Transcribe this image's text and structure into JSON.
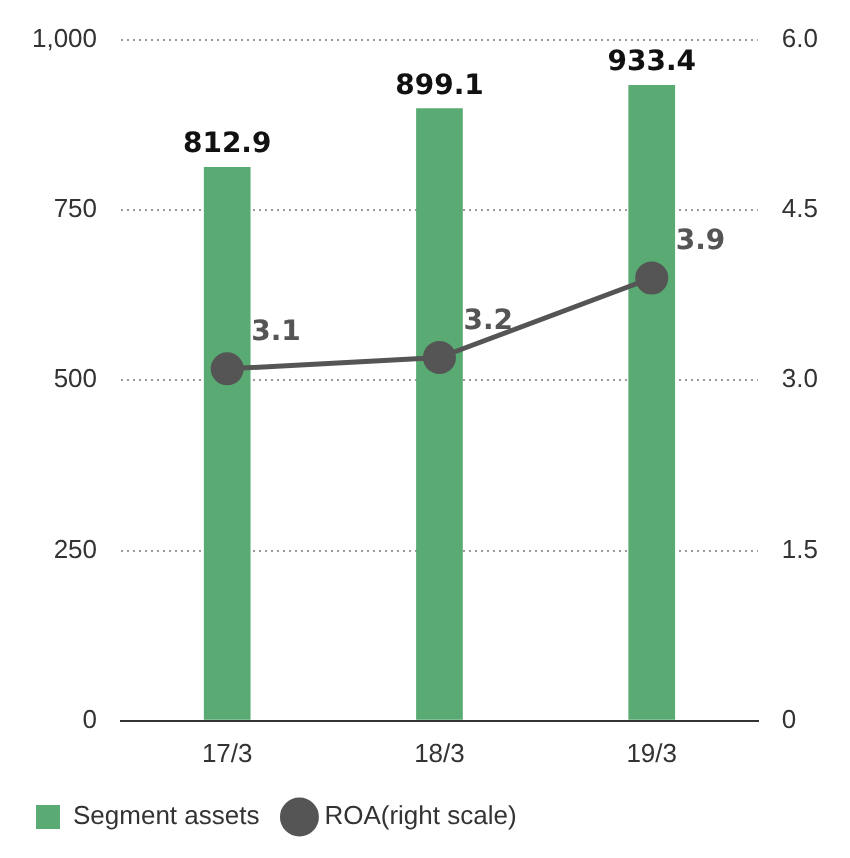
{
  "chart_data": {
    "type": "bar",
    "categories": [
      "17/3",
      "18/3",
      "19/3"
    ],
    "series": [
      {
        "name": "Segment assets",
        "color": "#5aaa73",
        "values": [
          812.9,
          899.1,
          933.4
        ]
      },
      {
        "name": "ROA(right scale)",
        "type": "line",
        "axis": "y2",
        "color": "#555555",
        "values": [
          3.1,
          3.2,
          3.9
        ]
      }
    ],
    "ylim": [
      0,
      1000
    ],
    "yticks": [
      0,
      250,
      500,
      750,
      {
        "value": 1000,
        "label": "1,000"
      }
    ],
    "y2lim": [
      0,
      6
    ],
    "y2ticks": [
      0,
      1.5,
      {
        "value": 3,
        "label": "3.0"
      },
      4.5,
      {
        "value": 6,
        "label": "6.0"
      }
    ],
    "grid": "y",
    "legend": "bottom left",
    "marker": "circle",
    "line_style": "solid",
    "data_labels": true
  }
}
